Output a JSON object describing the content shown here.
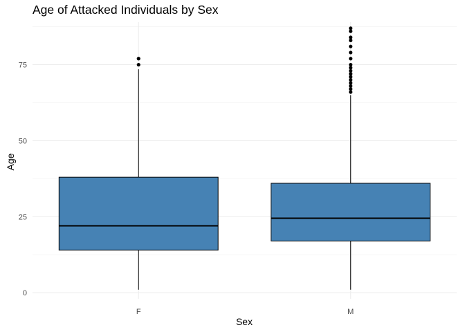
{
  "chart_data": {
    "type": "boxplot",
    "title": "Age of Attacked Individuals by Sex",
    "xlabel": "Sex",
    "ylabel": "Age",
    "categories": [
      "F",
      "M"
    ],
    "ylim": [
      -2,
      89
    ],
    "yticks": [
      0,
      25,
      50,
      75
    ],
    "grid": true,
    "fill_color": "#4682B4",
    "boxes": [
      {
        "category": "F",
        "min": 1,
        "q1": 14,
        "median": 22,
        "q3": 38,
        "max": 73.5,
        "outliers": [
          75,
          77
        ]
      },
      {
        "category": "M",
        "min": 1,
        "q1": 17,
        "median": 24.5,
        "q3": 36,
        "max": 65,
        "outliers": [
          66,
          67,
          68,
          69,
          70,
          71,
          72,
          73,
          74,
          75,
          77,
          79,
          81,
          83,
          84,
          86,
          87
        ]
      }
    ]
  }
}
